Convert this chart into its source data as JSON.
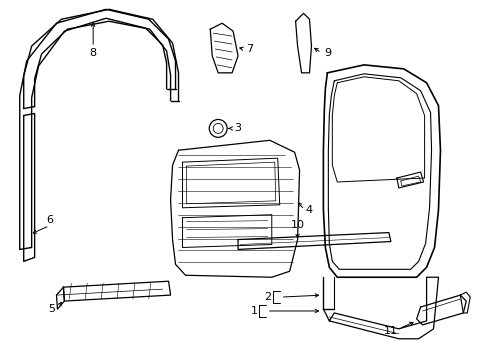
{
  "bg_color": "#ffffff",
  "line_color": "#000000",
  "lw_main": 1.0,
  "lw_thin": 0.6,
  "fontsize": 8
}
